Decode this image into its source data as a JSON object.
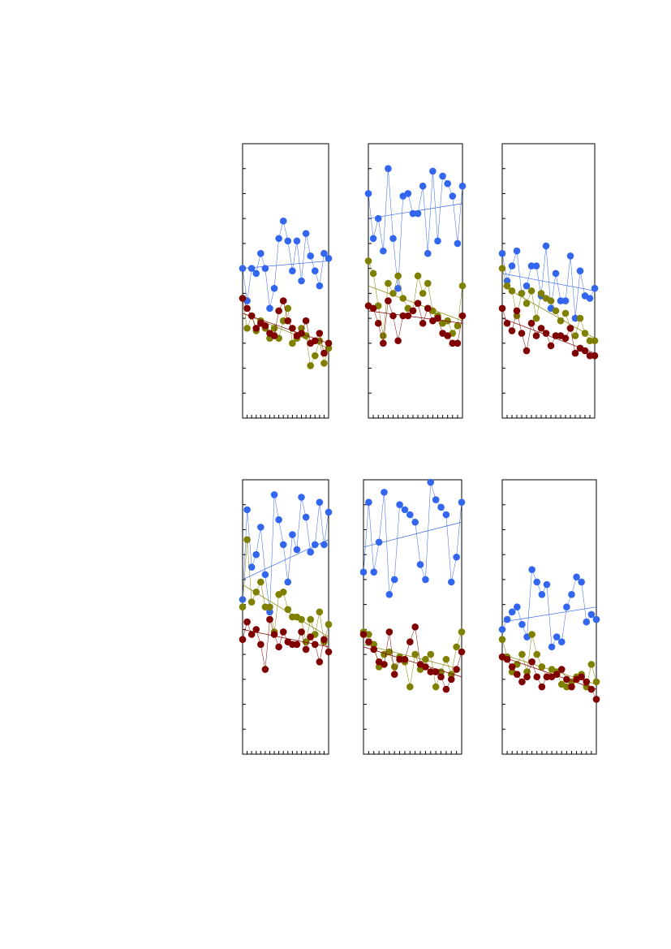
{
  "chart_data": [
    {
      "type": "scatter",
      "x": [
        0,
        1,
        2,
        3,
        4,
        5,
        6,
        7,
        8,
        9,
        10,
        11,
        12,
        13,
        14,
        15,
        16,
        17,
        18,
        19
      ],
      "xlim": [
        0,
        19
      ],
      "xticks": [
        0,
        1,
        2,
        3,
        4,
        5,
        6,
        7,
        8,
        9,
        10,
        11,
        12,
        13,
        14,
        15,
        16,
        17,
        18,
        19
      ],
      "ylim": [
        0,
        11
      ],
      "yticks": [
        0,
        1,
        2,
        3,
        4,
        5,
        6,
        7,
        8,
        9,
        10,
        11
      ],
      "series": [
        {
          "color": "#3366ee",
          "values": [
            6.0,
            4.7,
            6.0,
            5.8,
            6.6,
            6.0,
            4.4,
            5.2,
            7.2,
            7.9,
            7.1,
            5.9,
            7.1,
            5.5,
            7.4,
            6.5,
            5.9,
            5.3,
            6.6,
            6.4
          ],
          "trend": [
            6.0,
            6.3
          ]
        },
        {
          "color": "#808000",
          "values": [
            4.8,
            3.6,
            4.1,
            3.5,
            3.9,
            3.6,
            3.2,
            3.6,
            3.2,
            3.9,
            4.4,
            3.0,
            3.2,
            3.6,
            3.3,
            2.1,
            2.5,
            3.1,
            2.2,
            2.8
          ],
          "trend": [
            4.2,
            2.8
          ]
        },
        {
          "color": "#800000",
          "values": [
            4.8,
            4.4,
            4.1,
            3.6,
            3.8,
            3.7,
            3.4,
            3.3,
            4.3,
            4.7,
            3.9,
            3.6,
            3.3,
            3.4,
            3.9,
            3.0,
            3.1,
            3.4,
            2.6,
            3.0
          ],
          "trend": [
            4.2,
            3.0
          ]
        }
      ]
    },
    {
      "type": "scatter",
      "x": [
        0,
        1,
        2,
        3,
        4,
        5,
        6,
        7,
        8,
        9,
        10,
        11,
        12,
        13,
        14,
        15,
        16,
        17,
        18,
        19
      ],
      "xlim": [
        0,
        19
      ],
      "xticks": [
        0,
        1,
        2,
        3,
        4,
        5,
        6,
        7,
        8,
        9,
        10,
        11,
        12,
        13,
        14,
        15,
        16,
        17,
        18,
        19
      ],
      "ylim": [
        0,
        11
      ],
      "yticks": [
        0,
        1,
        2,
        3,
        4,
        5,
        6,
        7,
        8,
        9,
        10,
        11
      ],
      "series": [
        {
          "color": "#3366ee",
          "values": [
            9.0,
            7.2,
            8.0,
            6.7,
            10.0,
            7.2,
            5.2,
            8.9,
            9.0,
            8.2,
            8.2,
            9.3,
            6.6,
            9.9,
            7.1,
            9.7,
            9.4,
            8.9,
            7.0,
            9.3
          ],
          "trend": [
            8.0,
            8.6
          ]
        },
        {
          "color": "#808000",
          "values": [
            6.3,
            5.8,
            4.5,
            3.3,
            5.4,
            5.0,
            5.7,
            4.8,
            4.4,
            4.3,
            5.7,
            5.0,
            5.4,
            4.3,
            4.1,
            3.8,
            3.9,
            3.4,
            3.7,
            5.3
          ],
          "trend": [
            5.3,
            3.9
          ]
        },
        {
          "color": "#800000",
          "values": [
            4.5,
            4.4,
            3.8,
            3.0,
            4.7,
            4.1,
            3.1,
            4.1,
            4.1,
            4.3,
            4.6,
            3.8,
            4.4,
            3.9,
            4.0,
            3.4,
            3.3,
            3.0,
            3.0,
            4.1
          ],
          "trend": [
            4.3,
            3.8
          ]
        }
      ]
    },
    {
      "type": "scatter",
      "x": [
        0,
        1,
        2,
        3,
        4,
        5,
        6,
        7,
        8,
        9,
        10,
        11,
        12,
        13,
        14,
        15,
        16,
        17,
        18,
        19
      ],
      "xlim": [
        0,
        19
      ],
      "xticks": [
        0,
        1,
        2,
        3,
        4,
        5,
        6,
        7,
        8,
        9,
        10,
        11,
        12,
        13,
        14,
        15,
        16,
        17,
        18,
        19
      ],
      "ylim": [
        0,
        11
      ],
      "yticks": [
        0,
        1,
        2,
        3,
        4,
        5,
        6,
        7,
        8,
        9,
        10,
        11
      ],
      "series": [
        {
          "color": "#3366ee",
          "values": [
            6.6,
            5.5,
            6.1,
            6.7,
            5.0,
            5.3,
            6.1,
            6.1,
            4.9,
            6.9,
            4.4,
            5.8,
            4.7,
            4.7,
            6.5,
            4.0,
            5.9,
            4.9,
            4.8,
            5.2
          ],
          "trend": [
            5.8,
            5.1
          ]
        },
        {
          "color": "#808000",
          "values": [
            6.0,
            5.3,
            5.1,
            4.1,
            5.0,
            4.6,
            5.1,
            4.0,
            5.0,
            4.8,
            4.7,
            4.3,
            3.9,
            4.2,
            3.6,
            3.3,
            4.0,
            3.4,
            3.1,
            3.1
          ],
          "trend": [
            5.3,
            3.2
          ]
        },
        {
          "color": "#800000",
          "values": [
            4.4,
            3.8,
            3.5,
            4.3,
            3.4,
            2.7,
            3.8,
            3.3,
            3.6,
            3.4,
            2.9,
            3.3,
            3.3,
            3.2,
            3.6,
            2.6,
            2.8,
            2.7,
            2.5,
            2.5
          ],
          "trend": [
            4.0,
            2.6
          ]
        }
      ]
    },
    {
      "type": "scatter",
      "x": [
        0,
        1,
        2,
        3,
        4,
        5,
        6,
        7,
        8,
        9,
        10,
        11,
        12,
        13,
        14,
        15,
        16,
        17,
        18,
        19
      ],
      "xlim": [
        0,
        19
      ],
      "xticks": [
        0,
        1,
        2,
        3,
        4,
        5,
        6,
        7,
        8,
        9,
        10,
        11,
        12,
        13,
        14,
        15,
        16,
        17,
        18,
        19
      ],
      "ylim": [
        0,
        11
      ],
      "yticks": [
        0,
        1,
        2,
        3,
        4,
        5,
        6,
        7,
        8,
        9,
        10,
        11
      ],
      "series": [
        {
          "color": "#3366ee",
          "values": [
            6.2,
            9.8,
            7.5,
            8.0,
            9.1,
            7.2,
            5.7,
            10.4,
            9.4,
            8.4,
            6.9,
            8.8,
            8.2,
            10.3,
            9.5,
            8.1,
            8.4,
            10.1,
            8.4,
            9.7
          ],
          "trend": [
            7.0,
            8.6
          ]
        },
        {
          "color": "#808000",
          "values": [
            5.9,
            8.6,
            6.1,
            6.5,
            6.9,
            5.9,
            5.9,
            4.9,
            6.4,
            6.5,
            5.8,
            5.5,
            5.5,
            5.4,
            4.5,
            5.4,
            4.8,
            5.7,
            4.5,
            5.2
          ],
          "trend": [
            6.8,
            4.7
          ]
        },
        {
          "color": "#800000",
          "values": [
            4.6,
            5.3,
            4.8,
            5.0,
            4.4,
            3.4,
            5.4,
            4.8,
            4.3,
            4.9,
            4.5,
            4.4,
            4.4,
            4.9,
            4.2,
            4.7,
            4.4,
            3.7,
            4.6,
            4.1
          ],
          "trend": [
            5.0,
            4.3
          ]
        }
      ]
    },
    {
      "type": "scatter",
      "x": [
        0,
        1,
        2,
        3,
        4,
        5,
        6,
        7,
        8,
        9,
        10,
        11,
        12,
        13,
        14,
        15,
        16,
        17,
        18,
        19
      ],
      "xlim": [
        0,
        19
      ],
      "xticks": [
        0,
        1,
        2,
        3,
        4,
        5,
        6,
        7,
        8,
        9,
        10,
        11,
        12,
        13,
        14,
        15,
        16,
        17,
        18,
        19
      ],
      "ylim": [
        0,
        11
      ],
      "yticks": [
        0,
        1,
        2,
        3,
        4,
        5,
        6,
        7,
        8,
        9,
        10,
        11
      ],
      "series": [
        {
          "color": "#3366ee",
          "values": [
            7.3,
            10.1,
            7.3,
            8.5,
            10.5,
            6.4,
            7.0,
            10.0,
            9.8,
            9.6,
            9.3,
            7.6,
            7.0,
            10.9,
            10.2,
            9.9,
            9.6,
            6.9,
            7.9,
            10.1
          ],
          "trend": [
            8.3,
            9.3
          ]
        },
        {
          "color": "#808000",
          "values": [
            4.9,
            4.8,
            4.4,
            3.5,
            4.0,
            4.1,
            3.5,
            3.9,
            3.7,
            2.7,
            4.0,
            3.4,
            3.8,
            4.0,
            2.7,
            3.3,
            3.8,
            3.2,
            4.3,
            4.9
          ],
          "trend": [
            4.4,
            3.4
          ]
        },
        {
          "color": "#800000",
          "values": [
            4.8,
            4.5,
            4.2,
            3.7,
            3.6,
            4.9,
            3.2,
            3.8,
            3.8,
            4.5,
            5.1,
            3.6,
            3.5,
            3.3,
            3.3,
            3.1,
            2.6,
            3.0,
            3.4,
            4.1
          ],
          "trend": [
            4.3,
            3.1
          ]
        }
      ]
    },
    {
      "type": "scatter",
      "x": [
        0,
        1,
        2,
        3,
        4,
        5,
        6,
        7,
        8,
        9,
        10,
        11,
        12,
        13,
        14,
        15,
        16,
        17,
        18,
        19
      ],
      "xlim": [
        0,
        19
      ],
      "xticks": [
        0,
        1,
        2,
        3,
        4,
        5,
        6,
        7,
        8,
        9,
        10,
        11,
        12,
        13,
        14,
        15,
        16,
        17,
        18,
        19
      ],
      "ylim": [
        0,
        11
      ],
      "yticks": [
        0,
        1,
        2,
        3,
        4,
        5,
        6,
        7,
        8,
        9,
        10,
        11
      ],
      "series": [
        {
          "color": "#3366ee",
          "values": [
            5.0,
            5.4,
            5.7,
            5.9,
            5.2,
            4.7,
            7.4,
            6.9,
            6.4,
            6.8,
            4.3,
            4.7,
            4.5,
            5.9,
            6.4,
            7.1,
            6.9,
            5.3,
            5.6,
            5.4
          ],
          "trend": [
            5.3,
            5.9
          ]
        },
        {
          "color": "#808000",
          "values": [
            4.6,
            3.9,
            3.3,
            3.6,
            4.0,
            3.3,
            4.8,
            4.0,
            3.5,
            3.1,
            3.4,
            3.3,
            2.8,
            2.7,
            2.9,
            3.1,
            3.2,
            2.7,
            3.6,
            2.9
          ],
          "trend": [
            4.0,
            2.8
          ]
        },
        {
          "color": "#800000",
          "values": [
            3.9,
            3.8,
            3.5,
            3.2,
            2.9,
            3.1,
            3.7,
            3.1,
            2.7,
            3.1,
            3.1,
            3.2,
            3.4,
            3.0,
            2.7,
            3.0,
            3.1,
            2.9,
            2.6,
            2.2
          ],
          "trend": [
            3.9,
            2.6
          ]
        }
      ]
    }
  ]
}
